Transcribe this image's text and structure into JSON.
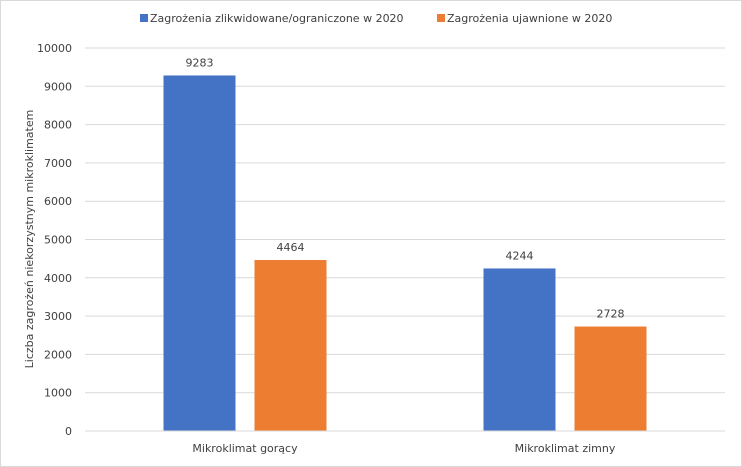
{
  "chart_data": {
    "type": "bar",
    "title": "",
    "categories": [
      "Mikroklimat gorący",
      "Mikroklimat zimny"
    ],
    "series": [
      {
        "name": "Zagrożenia zlikwidowane/ograniczone  w 2020",
        "values": [
          9283,
          4244
        ],
        "color": "#4472C4"
      },
      {
        "name": "Zagrożenia ujawnione  w 2020",
        "values": [
          4464,
          2728
        ],
        "color": "#ED7D31"
      }
    ],
    "xlabel": "",
    "ylabel": "Liczba zagrożeń niekorzystnym mikroklimatem",
    "ylim": [
      0,
      10000
    ],
    "yticks": [
      0,
      1000,
      2000,
      3000,
      4000,
      5000,
      6000,
      7000,
      8000,
      9000,
      10000
    ],
    "grid": true,
    "legend": "top"
  }
}
